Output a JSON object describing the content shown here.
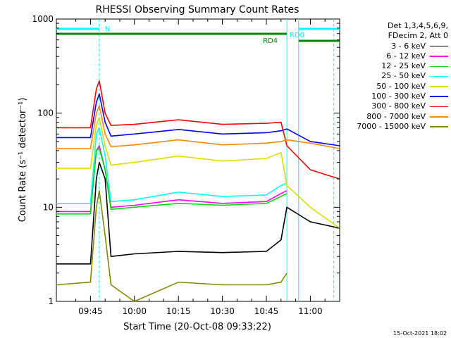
{
  "chart_data": {
    "type": "line",
    "title": "RHESSI Observing Summary Count Rates",
    "xlabel": "Start Time (20-Oct-08 09:33:22)",
    "ylabel": "Count Rate (s⁻¹ detector⁻¹)",
    "y_scale": "log",
    "ylim": [
      1,
      1000
    ],
    "y_ticks": [
      {
        "value": 1,
        "label": "1"
      },
      {
        "value": 10,
        "label": "10"
      },
      {
        "value": 100,
        "label": "100"
      },
      {
        "value": 1000,
        "label": "1000"
      }
    ],
    "x_range": [
      "09:33:22",
      "11:10:00"
    ],
    "x_ticks": [
      {
        "time": "09:45",
        "label": "09:45"
      },
      {
        "time": "10:00",
        "label": "10:00"
      },
      {
        "time": "10:15",
        "label": "10:15"
      },
      {
        "time": "10:30",
        "label": "10:30"
      },
      {
        "time": "10:45",
        "label": "10:45"
      },
      {
        "time": "11:00",
        "label": "11:00"
      }
    ],
    "legend_header": [
      "Det 1,3,4,5,6,9,",
      "FDecim 2, Att 0"
    ],
    "legend_position": "right",
    "series": [
      {
        "name": "3 - 6 keV",
        "color": "#000000",
        "x": [
          "09:33:22",
          "09:45",
          "09:47",
          "09:48",
          "09:50",
          "09:52",
          "10:00",
          "10:15",
          "10:30",
          "10:45",
          "10:50",
          "10:52",
          "11:00",
          "11:10"
        ],
        "y": [
          2.5,
          2.5,
          20,
          30,
          20,
          3,
          3.2,
          3.4,
          3.3,
          3.4,
          4.5,
          10,
          7,
          6
        ]
      },
      {
        "name": "6 - 12 keV",
        "color": "#ff00ff",
        "x": [
          "09:33:22",
          "09:45",
          "09:47",
          "09:48",
          "09:50",
          "09:52",
          "10:00",
          "10:15",
          "10:30",
          "10:45",
          "10:50",
          "10:52"
        ],
        "y": [
          9,
          9,
          40,
          45,
          25,
          10,
          10.5,
          12,
          11,
          11.5,
          14,
          15
        ]
      },
      {
        "name": "12 - 25 keV",
        "color": "#00dd00",
        "x": [
          "09:33:22",
          "09:45",
          "09:47",
          "09:48",
          "09:50",
          "09:52",
          "10:00",
          "10:15",
          "10:30",
          "10:45",
          "10:50",
          "10:52"
        ],
        "y": [
          8.5,
          8.5,
          40,
          42,
          25,
          9.5,
          10,
          11,
          10.5,
          11,
          13,
          14
        ]
      },
      {
        "name": "25 - 50 keV",
        "color": "#00ffff",
        "x": [
          "09:33:22",
          "09:45",
          "09:47",
          "09:48",
          "09:50",
          "09:52",
          "10:00",
          "10:15",
          "10:30",
          "10:45",
          "10:50",
          "10:52"
        ],
        "y": [
          11,
          11,
          60,
          70,
          35,
          11.5,
          12,
          14.5,
          13,
          13.5,
          17,
          18
        ]
      },
      {
        "name": "50 - 100 keV",
        "color": "#dddd00",
        "x": [
          "09:33:22",
          "09:45",
          "09:47",
          "09:48",
          "09:50",
          "09:52",
          "10:00",
          "10:15",
          "10:30",
          "10:45",
          "10:50",
          "10:52",
          "11:00",
          "11:10"
        ],
        "y": [
          26,
          26,
          75,
          90,
          45,
          28,
          30,
          35,
          31,
          33,
          38,
          17,
          10,
          6
        ]
      },
      {
        "name": "100 - 300 keV",
        "color": "#0000ff",
        "x": [
          "09:33:22",
          "09:45",
          "09:47",
          "09:48",
          "09:50",
          "09:52",
          "10:00",
          "10:15",
          "10:30",
          "10:45",
          "10:50",
          "10:52",
          "11:00",
          "11:10"
        ],
        "y": [
          55,
          55,
          130,
          160,
          80,
          57,
          60,
          67,
          60,
          62,
          65,
          68,
          50,
          45
        ]
      },
      {
        "name": "300 - 800 keV",
        "color": "#ff0000",
        "x": [
          "09:33:22",
          "09:45",
          "09:47",
          "09:48",
          "09:50",
          "09:52",
          "10:00",
          "10:15",
          "10:30",
          "10:45",
          "10:50",
          "10:52",
          "11:00",
          "11:10"
        ],
        "y": [
          70,
          70,
          180,
          220,
          100,
          74,
          76,
          85,
          76,
          78,
          80,
          45,
          25,
          20
        ]
      },
      {
        "name": "800 - 7000 keV",
        "color": "#ff8800",
        "x": [
          "09:33:22",
          "09:45",
          "09:47",
          "09:48",
          "09:50",
          "09:52",
          "10:00",
          "10:15",
          "10:30",
          "10:45",
          "10:50",
          "10:52",
          "11:00",
          "11:10"
        ],
        "y": [
          42,
          42,
          100,
          120,
          60,
          44,
          46,
          52,
          46,
          48,
          50,
          52,
          48,
          42
        ]
      },
      {
        "name": "7000 - 15000 keV",
        "color": "#888800",
        "x": [
          "09:33:22",
          "09:45",
          "09:47",
          "09:48",
          "09:50",
          "09:52",
          "10:00",
          "10:15",
          "10:30",
          "10:45",
          "10:50",
          "10:52"
        ],
        "y": [
          1.5,
          1.6,
          10,
          15,
          5,
          1.5,
          1,
          1.6,
          1.5,
          1.5,
          1.6,
          2
        ]
      }
    ],
    "annotations": [
      {
        "label": "N",
        "color": "#00ffff"
      },
      {
        "label": "RD0",
        "color": "#00ffff"
      },
      {
        "label": "RD4",
        "color": "#008800"
      }
    ]
  },
  "footer": {
    "timestamp": "15-Oct-2021 18:02"
  }
}
